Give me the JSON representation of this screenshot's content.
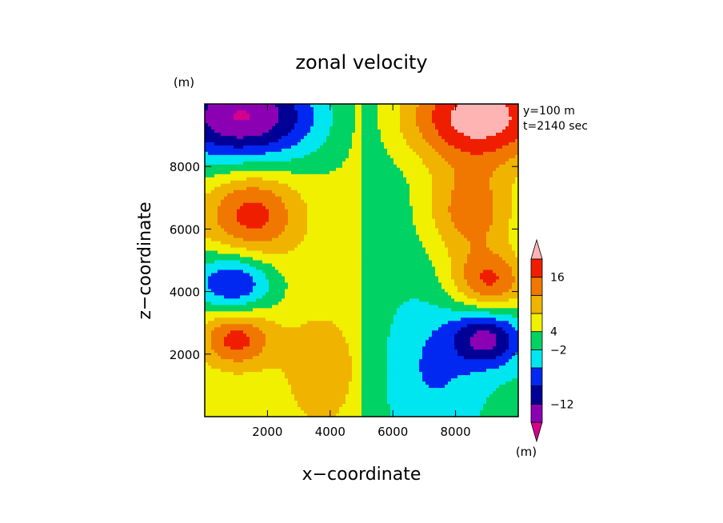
{
  "chart_data": {
    "type": "heatmap",
    "title": "zonal velocity",
    "xlabel": "x−coordinate",
    "ylabel": "z−coordinate",
    "x_unit": "(m)",
    "y_unit": "(m)",
    "annotations": [
      "y=100 m",
      "t=2140 sec"
    ],
    "xlim": [
      0,
      10000
    ],
    "ylim": [
      0,
      10000
    ],
    "x_ticks": [
      {
        "value": 2000,
        "label": "2000"
      },
      {
        "value": 4000,
        "label": "4000"
      },
      {
        "value": 6000,
        "label": "6000"
      },
      {
        "value": 8000,
        "label": "8000"
      }
    ],
    "y_ticks": [
      {
        "value": 2000,
        "label": "2000"
      },
      {
        "value": 4000,
        "label": "4000"
      },
      {
        "value": 6000,
        "label": "6000"
      },
      {
        "value": 8000,
        "label": "8000"
      }
    ],
    "colorbar": {
      "colors": [
        "#d4008c",
        "#8c00b4",
        "#000096",
        "#0028f0",
        "#00e6f0",
        "#00d264",
        "#f0f000",
        "#f0b400",
        "#f07800",
        "#f01e00",
        "#ffb4b4"
      ],
      "labels": [
        {
          "index": 9,
          "text": "16"
        },
        {
          "index": 6,
          "text": "4"
        },
        {
          "index": 5,
          "text": "−2"
        },
        {
          "index": 2,
          "text": "−12"
        }
      ]
    },
    "field": {
      "background": 6,
      "right_background": 5,
      "features": [
        {
          "x": 1200,
          "z": 9600,
          "rx": 2500,
          "rz": 1600,
          "amp": -5.4,
          "sign": -1
        },
        {
          "x": 8800,
          "z": 9600,
          "rx": 2500,
          "rz": 1600,
          "amp": 5.4,
          "sign": 1
        },
        {
          "x": 1500,
          "z": 6500,
          "rx": 1500,
          "rz": 1500,
          "amp": 3.2,
          "sign": 1
        },
        {
          "x": 8500,
          "z": 6500,
          "rx": 1500,
          "rz": 1500,
          "amp": 3.2,
          "sign": -1
        },
        {
          "x": 900,
          "z": 4300,
          "rx": 1300,
          "rz": 1000,
          "amp": -3.6,
          "sign": -1
        },
        {
          "x": 9100,
          "z": 4300,
          "rx": 1300,
          "rz": 1000,
          "amp": 3.6,
          "sign": 1
        },
        {
          "x": 1000,
          "z": 2500,
          "rx": 1100,
          "rz": 900,
          "amp": 3.2,
          "sign": 1
        },
        {
          "x": 9000,
          "z": 2500,
          "rx": 1100,
          "rz": 900,
          "amp": -3.6,
          "sign": -1
        },
        {
          "x": 3700,
          "z": 1500,
          "rx": 1400,
          "rz": 2200,
          "amp": 1.2,
          "sign": 1
        },
        {
          "x": 7300,
          "z": 1500,
          "rx": 1400,
          "rz": 2200,
          "amp": -1.4,
          "sign": -1
        }
      ]
    }
  }
}
